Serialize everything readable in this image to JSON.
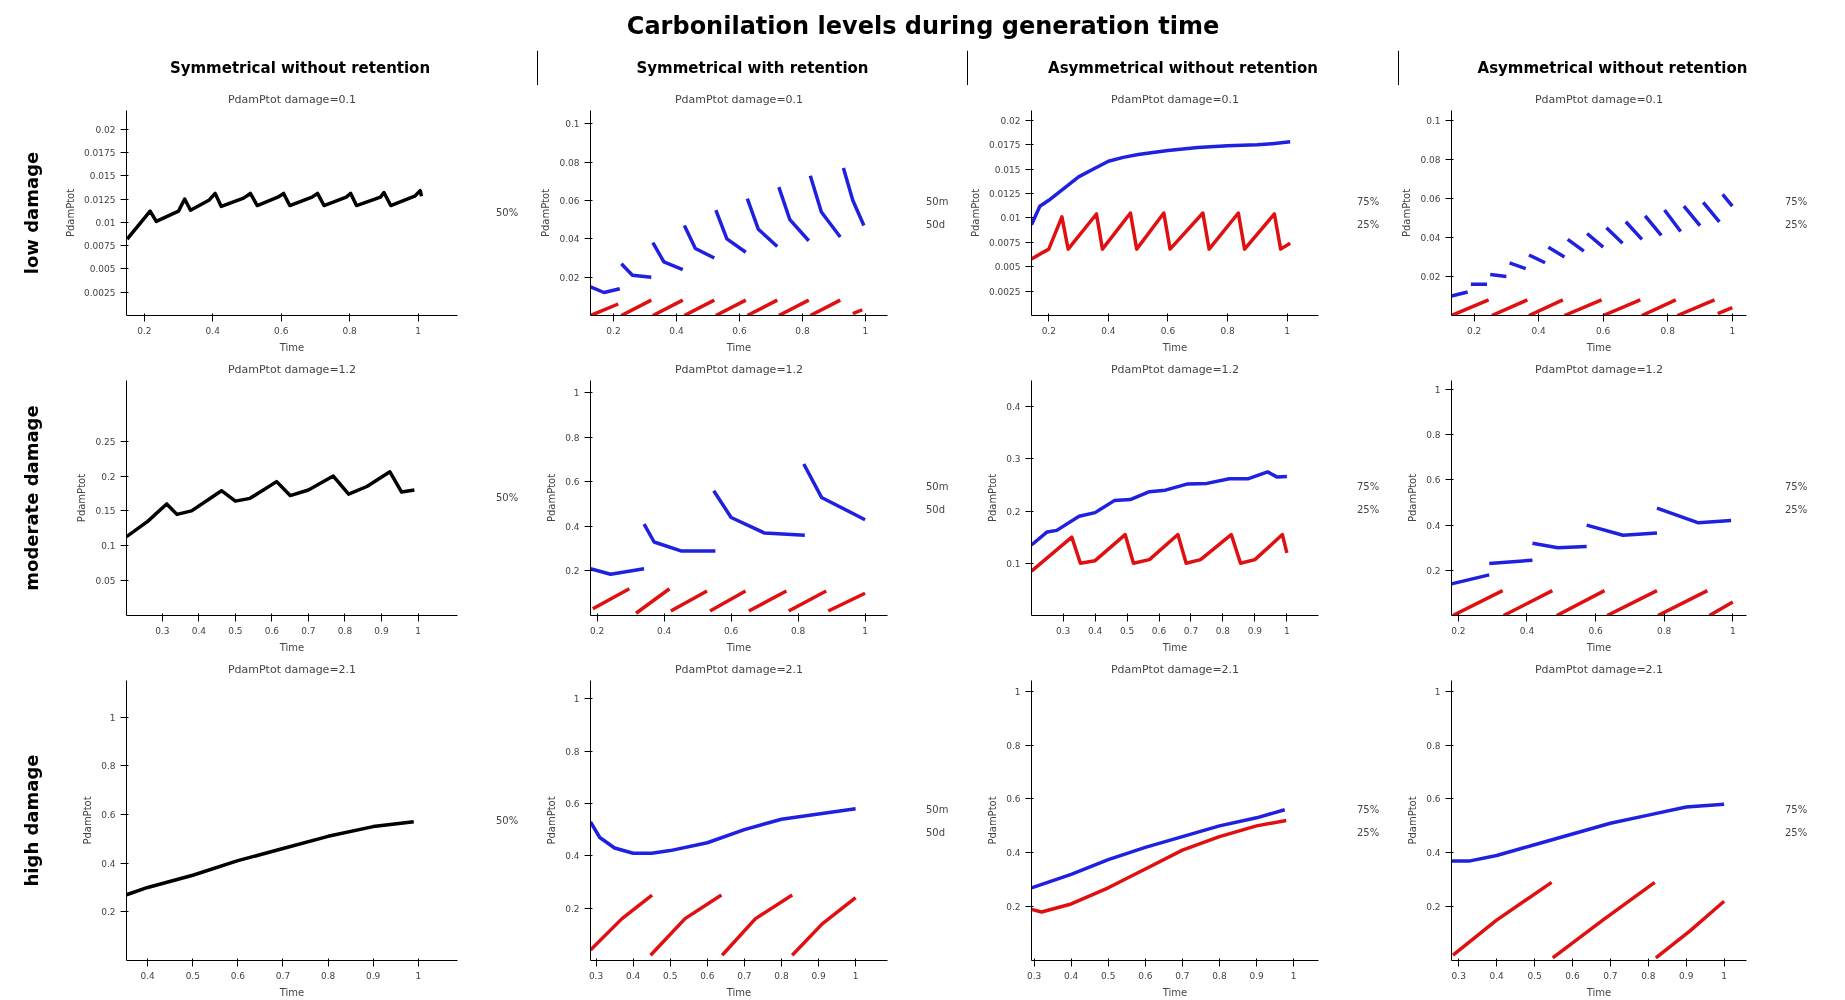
{
  "chart_data": [
    {
      "type": "other",
      "title": "Carbonilation levels during generation time",
      "categories": [
        "Symmetrical without retention",
        "Symmetrical with retention",
        "Asymmetrical without retention",
        "Asymmetrical without retention"
      ],
      "y_categories": [
        "low damage",
        "moderate damage",
        "high damage"
      ]
    },
    {
      "type": "line",
      "title": "PdamPtot damage=0.1",
      "xlabel": "Time",
      "ylabel": "PdamPtot",
      "xlim": [
        0.148,
        1.115
      ],
      "xticks": [
        0.2,
        0.4,
        0.6,
        0.8,
        1
      ],
      "ylim": [
        0,
        0.022
      ],
      "yticks": [
        0.0025,
        0.005,
        0.0075,
        0.01,
        0.0125,
        0.015,
        0.0175,
        0.02
      ],
      "legend": "right",
      "series": [
        {
          "name": "50%",
          "color": "#000000",
          "x": [
            0.15,
            0.217,
            0.235,
            0.3,
            0.318,
            0.335,
            0.39,
            0.407,
            0.425,
            0.49,
            0.51,
            0.53,
            0.59,
            0.607,
            0.625,
            0.69,
            0.706,
            0.725,
            0.79,
            0.803,
            0.82,
            0.89,
            0.9,
            0.92,
            0.99,
            1.006,
            1.01
          ],
          "values": [
            0.0082,
            0.0112,
            0.0101,
            0.0112,
            0.0125,
            0.0113,
            0.0124,
            0.0131,
            0.0117,
            0.0126,
            0.0131,
            0.0118,
            0.0127,
            0.0131,
            0.0118,
            0.0127,
            0.0131,
            0.0118,
            0.0127,
            0.0131,
            0.0118,
            0.0127,
            0.0132,
            0.0118,
            0.0128,
            0.0134,
            0.0128
          ]
        }
      ]
    },
    {
      "type": "line",
      "title": "PdamPtot damage=0.1",
      "xlabel": "Time",
      "ylabel": "PdamPtot",
      "xlim": [
        0.127,
        1.07
      ],
      "xticks": [
        0.2,
        0.4,
        0.6,
        0.8,
        1
      ],
      "ylim": [
        0,
        0.107
      ],
      "yticks": [
        0.02,
        0.04,
        0.06,
        0.08,
        0.1
      ],
      "legend": "right",
      "series": [
        {
          "name": "50m",
          "color": "#2020e0",
          "x": [
            0.127,
            0.17,
            0.22,
            null,
            0.225,
            0.26,
            0.32,
            null,
            0.325,
            0.36,
            0.42,
            null,
            0.425,
            0.46,
            0.52,
            null,
            0.525,
            0.56,
            0.62,
            null,
            0.625,
            0.66,
            0.72,
            null,
            0.725,
            0.76,
            0.82,
            null,
            0.825,
            0.86,
            0.92,
            null,
            0.93,
            0.96,
            0.995
          ],
          "values": [
            0.015,
            0.012,
            0.014,
            null,
            0.027,
            0.021,
            0.02,
            null,
            0.038,
            0.028,
            0.024,
            null,
            0.047,
            0.035,
            0.03,
            null,
            0.055,
            0.04,
            0.033,
            null,
            0.061,
            0.045,
            0.036,
            null,
            0.067,
            0.05,
            0.039,
            null,
            0.073,
            0.054,
            0.041,
            null,
            0.077,
            0.06,
            0.047
          ]
        },
        {
          "name": "50d",
          "color": "#e01010",
          "x": [
            0.127,
            0.215,
            null,
            0.225,
            0.32,
            null,
            0.325,
            0.42,
            null,
            0.425,
            0.52,
            null,
            0.525,
            0.62,
            null,
            0.625,
            0.72,
            null,
            0.725,
            0.82,
            null,
            0.825,
            0.92,
            null,
            0.96,
            0.99
          ],
          "values": [
            0,
            0.006,
            null,
            0,
            0.008,
            null,
            0,
            0.008,
            null,
            0,
            0.008,
            null,
            0,
            0.008,
            null,
            0,
            0.008,
            null,
            0,
            0.008,
            null,
            0,
            0.008,
            null,
            0.001,
            0.003
          ]
        }
      ]
    },
    {
      "type": "line",
      "title": "PdamPtot damage=0.1",
      "xlabel": "Time",
      "ylabel": "PdamPtot",
      "xlim": [
        0.142,
        1.105
      ],
      "xticks": [
        0.2,
        0.4,
        0.6,
        0.8,
        1
      ],
      "ylim": [
        0,
        0.021
      ],
      "yticks": [
        0.0025,
        0.005,
        0.0075,
        0.01,
        0.0125,
        0.015,
        0.0175,
        0.02
      ],
      "legend": "right",
      "series": [
        {
          "name": "75%",
          "color": "#2020e0",
          "x": [
            0.142,
            0.17,
            0.2,
            0.25,
            0.3,
            0.35,
            0.4,
            0.45,
            0.5,
            0.6,
            0.7,
            0.8,
            0.9,
            0.95,
            1.01
          ],
          "values": [
            0.0093,
            0.0112,
            0.0118,
            0.013,
            0.0142,
            0.015,
            0.0158,
            0.0162,
            0.0165,
            0.0169,
            0.0172,
            0.0174,
            0.0175,
            0.0176,
            0.0178
          ]
        },
        {
          "name": "25%",
          "color": "#e01010",
          "x": [
            0.142,
            0.2,
            0.244,
            0.265,
            0.36,
            0.38,
            0.474,
            0.495,
            0.586,
            0.607,
            0.717,
            0.738,
            0.836,
            0.857,
            0.957,
            0.978,
            1.01
          ],
          "values": [
            0.0058,
            0.0068,
            0.0101,
            0.0068,
            0.0104,
            0.0068,
            0.0105,
            0.0068,
            0.0105,
            0.0068,
            0.0105,
            0.0068,
            0.0105,
            0.0068,
            0.0104,
            0.0068,
            0.0074
          ]
        }
      ]
    },
    {
      "type": "line",
      "title": "PdamPtot damage=0.1",
      "xlabel": "Time",
      "ylabel": "PdamPtot",
      "xlim": [
        0.13,
        1.044
      ],
      "xticks": [
        0.2,
        0.4,
        0.6,
        0.8,
        1
      ],
      "ylim": [
        0,
        0.105
      ],
      "yticks": [
        0.02,
        0.04,
        0.06,
        0.08,
        0.1
      ],
      "legend": "right",
      "series": [
        {
          "name": "75%",
          "color": "#2020e0",
          "x": [
            0.13,
            0.18,
            null,
            0.19,
            0.24,
            null,
            0.25,
            0.3,
            null,
            0.31,
            0.36,
            null,
            0.37,
            0.42,
            null,
            0.43,
            0.48,
            null,
            0.49,
            0.54,
            null,
            0.55,
            0.6,
            null,
            0.61,
            0.66,
            null,
            0.67,
            0.72,
            null,
            0.73,
            0.78,
            null,
            0.79,
            0.84,
            null,
            0.85,
            0.9,
            null,
            0.91,
            0.96,
            null,
            0.97,
            1.0
          ],
          "values": [
            0.01,
            0.012,
            null,
            0.016,
            0.016,
            null,
            0.021,
            0.02,
            null,
            0.027,
            0.024,
            null,
            0.031,
            0.027,
            null,
            0.035,
            0.03,
            null,
            0.039,
            0.033,
            null,
            0.042,
            0.035,
            null,
            0.045,
            0.037,
            null,
            0.048,
            0.039,
            null,
            0.051,
            0.041,
            null,
            0.054,
            0.043,
            null,
            0.056,
            0.046,
            null,
            0.058,
            0.048,
            null,
            0.062,
            0.056
          ]
        },
        {
          "name": "25%",
          "color": "#e01010",
          "x": [
            0.13,
            0.245,
            null,
            0.255,
            0.365,
            null,
            0.37,
            0.475,
            null,
            0.48,
            0.595,
            null,
            0.6,
            0.715,
            null,
            0.72,
            0.825,
            null,
            0.83,
            0.945,
            null,
            0.955,
            1.0
          ],
          "values": [
            0,
            0.008,
            null,
            0,
            0.008,
            null,
            0,
            0.008,
            null,
            0,
            0.008,
            null,
            0,
            0.008,
            null,
            0,
            0.008,
            null,
            0,
            0.008,
            null,
            0.001,
            0.004
          ]
        }
      ]
    },
    {
      "type": "line",
      "title": "PdamPtot damage=1.2",
      "xlabel": "Time",
      "ylabel": "PdamPtot",
      "xlim": [
        0.202,
        1.108
      ],
      "xticks": [
        0.3,
        0.4,
        0.5,
        0.6,
        0.7,
        0.8,
        0.9,
        1
      ],
      "ylim": [
        0,
        0.337
      ],
      "yticks": [
        0.05,
        0.1,
        0.15,
        0.2,
        0.25
      ],
      "legend": "right",
      "series": [
        {
          "name": "50%",
          "color": "#000000",
          "x": [
            0.202,
            0.26,
            0.312,
            0.34,
            0.38,
            0.462,
            0.5,
            0.54,
            0.613,
            0.65,
            0.7,
            0.768,
            0.81,
            0.86,
            0.923,
            0.955,
            0.99
          ],
          "values": [
            0.113,
            0.135,
            0.16,
            0.145,
            0.15,
            0.179,
            0.164,
            0.168,
            0.192,
            0.172,
            0.18,
            0.2,
            0.174,
            0.185,
            0.206,
            0.177,
            0.18
          ]
        }
      ]
    },
    {
      "type": "line",
      "title": "PdamPtot damage=1.2",
      "xlabel": "Time",
      "ylabel": "PdamPtot",
      "xlim": [
        0.18,
        1.067
      ],
      "xticks": [
        0.2,
        0.4,
        0.6,
        0.8,
        1
      ],
      "ylim": [
        0,
        1.055
      ],
      "yticks": [
        0.2,
        0.4,
        0.6,
        0.8,
        1
      ],
      "legend": "right",
      "series": [
        {
          "name": "50m",
          "color": "#2020e0",
          "x": [
            0.18,
            0.24,
            0.34,
            null,
            0.34,
            0.37,
            0.45,
            0.553,
            null,
            0.548,
            0.6,
            0.7,
            0.82,
            null,
            0.817,
            0.87,
            1.0
          ],
          "values": [
            0.21,
            0.185,
            0.21,
            null,
            0.41,
            0.33,
            0.29,
            0.29,
            null,
            0.56,
            0.44,
            0.37,
            0.36,
            null,
            0.68,
            0.53,
            0.43
          ]
        },
        {
          "name": "50d",
          "color": "#e01010",
          "x": [
            0.187,
            0.296,
            null,
            0.316,
            0.416,
            null,
            0.42,
            0.528,
            null,
            0.537,
            0.643,
            null,
            0.653,
            0.765,
            null,
            0.772,
            0.884,
            null,
            0.89,
            1.0
          ],
          "values": [
            0.03,
            0.12,
            null,
            0.01,
            0.12,
            null,
            0.02,
            0.11,
            null,
            0.02,
            0.11,
            null,
            0.02,
            0.11,
            null,
            0.02,
            0.11,
            null,
            0.02,
            0.1
          ]
        }
      ]
    },
    {
      "type": "line",
      "title": "PdamPtot damage=1.2",
      "xlabel": "Time",
      "ylabel": "PdamPtot",
      "xlim": [
        0.201,
        1.099
      ],
      "xticks": [
        0.3,
        0.4,
        0.5,
        0.6,
        0.7,
        0.8,
        0.9,
        1
      ],
      "ylim": [
        0,
        0.45
      ],
      "yticks": [
        0.1,
        0.2,
        0.3,
        0.4
      ],
      "legend": "right",
      "series": [
        {
          "name": "75%",
          "color": "#2020e0",
          "x": [
            0.201,
            0.25,
            0.28,
            0.35,
            0.4,
            0.46,
            0.51,
            0.57,
            0.62,
            0.69,
            0.75,
            0.82,
            0.88,
            0.94,
            0.97,
            1.0
          ],
          "values": [
            0.135,
            0.16,
            0.163,
            0.19,
            0.197,
            0.22,
            0.222,
            0.237,
            0.24,
            0.252,
            0.253,
            0.262,
            0.262,
            0.275,
            0.265,
            0.266
          ]
        },
        {
          "name": "25%",
          "color": "#e01010",
          "x": [
            0.201,
            0.327,
            0.354,
            0.4,
            0.494,
            0.52,
            0.57,
            0.659,
            0.685,
            0.73,
            0.826,
            0.855,
            0.9,
            0.986,
            1.0
          ],
          "values": [
            0.085,
            0.15,
            0.1,
            0.105,
            0.155,
            0.1,
            0.107,
            0.155,
            0.1,
            0.107,
            0.155,
            0.1,
            0.107,
            0.155,
            0.12
          ]
        }
      ]
    },
    {
      "type": "line",
      "title": "PdamPtot damage=1.2",
      "xlabel": "Time",
      "ylabel": "PdamPtot",
      "xlim": [
        0.18,
        1.04
      ],
      "xticks": [
        0.2,
        0.4,
        0.6,
        0.8,
        1
      ],
      "ylim": [
        0,
        1.04
      ],
      "yticks": [
        0.2,
        0.4,
        0.6,
        0.8,
        1
      ],
      "legend": "right",
      "series": [
        {
          "name": "75%",
          "color": "#2020e0",
          "x": [
            0.18,
            0.29,
            null,
            0.29,
            0.416,
            null,
            0.416,
            0.49,
            0.574,
            null,
            0.574,
            0.68,
            0.779,
            null,
            0.779,
            0.9,
            0.995
          ],
          "values": [
            0.14,
            0.18,
            null,
            0.23,
            0.245,
            null,
            0.32,
            0.3,
            0.305,
            null,
            0.4,
            0.355,
            0.365,
            null,
            0.475,
            0.41,
            0.42
          ]
        },
        {
          "name": "25%",
          "color": "#e01010",
          "x": [
            0.184,
            0.329,
            null,
            0.332,
            0.474,
            null,
            0.487,
            0.626,
            null,
            0.634,
            0.779,
            null,
            0.782,
            0.926,
            null,
            0.932,
            1.0
          ],
          "values": [
            0,
            0.11,
            null,
            0,
            0.11,
            null,
            0,
            0.11,
            null,
            0,
            0.11,
            null,
            0,
            0.11,
            null,
            0,
            0.06
          ]
        }
      ]
    },
    {
      "type": "line",
      "title": "PdamPtot damage=2.1",
      "xlabel": "Time",
      "ylabel": "PdamPtot",
      "xlim": [
        0.353,
        1.087
      ],
      "xticks": [
        0.4,
        0.5,
        0.6,
        0.7,
        0.8,
        0.9,
        1
      ],
      "ylim": [
        0,
        1.15
      ],
      "yticks": [
        0.2,
        0.4,
        0.6,
        0.8,
        1
      ],
      "legend": "right",
      "series": [
        {
          "name": "50%",
          "color": "#000000",
          "x": [
            0.353,
            0.4,
            0.5,
            0.6,
            0.7,
            0.8,
            0.9,
            0.99
          ],
          "values": [
            0.27,
            0.3,
            0.35,
            0.41,
            0.46,
            0.51,
            0.55,
            0.57
          ]
        }
      ]
    },
    {
      "type": "line",
      "title": "PdamPtot damage=2.1",
      "xlabel": "Time",
      "ylabel": "PdamPtot",
      "xlim": [
        0.285,
        1.086
      ],
      "xticks": [
        0.3,
        0.4,
        0.5,
        0.6,
        0.7,
        0.8,
        0.9,
        1
      ],
      "ylim": [
        0,
        1.07
      ],
      "yticks": [
        0.2,
        0.4,
        0.6,
        0.8,
        1
      ],
      "legend": "right",
      "series": [
        {
          "name": "50m",
          "color": "#2020e0",
          "x": [
            0.285,
            0.31,
            0.35,
            0.4,
            0.45,
            0.5,
            0.6,
            0.7,
            0.8,
            0.9,
            1.0
          ],
          "values": [
            0.53,
            0.47,
            0.43,
            0.41,
            0.41,
            0.42,
            0.45,
            0.5,
            0.54,
            0.56,
            0.58
          ]
        },
        {
          "name": "50d",
          "color": "#e01010",
          "x": [
            0.285,
            0.37,
            0.451,
            null,
            0.447,
            0.54,
            0.638,
            null,
            0.64,
            0.73,
            0.829,
            null,
            0.829,
            0.91,
            1.0
          ],
          "values": [
            0.04,
            0.16,
            0.25,
            null,
            0.02,
            0.16,
            0.25,
            null,
            0.02,
            0.16,
            0.25,
            null,
            0.02,
            0.14,
            0.24
          ]
        }
      ]
    },
    {
      "type": "line",
      "title": "PdamPtot damage=2.1",
      "xlabel": "Time",
      "ylabel": "PdamPtot",
      "xlim": [
        0.293,
        1.067
      ],
      "xticks": [
        0.3,
        0.4,
        0.5,
        0.6,
        0.7,
        0.8,
        0.9,
        1
      ],
      "ylim": [
        0,
        1.04
      ],
      "yticks": [
        0.2,
        0.4,
        0.6,
        0.8,
        1
      ],
      "legend": "right",
      "series": [
        {
          "name": "75%",
          "color": "#2020e0",
          "x": [
            0.293,
            0.4,
            0.5,
            0.6,
            0.7,
            0.8,
            0.9,
            0.976
          ],
          "values": [
            0.27,
            0.32,
            0.375,
            0.42,
            0.46,
            0.5,
            0.53,
            0.56
          ]
        },
        {
          "name": "25%",
          "color": "#e01010",
          "x": [
            0.293,
            0.32,
            0.4,
            0.5,
            0.6,
            0.7,
            0.8,
            0.9,
            0.98
          ],
          "values": [
            0.19,
            0.18,
            0.21,
            0.27,
            0.34,
            0.41,
            0.46,
            0.5,
            0.52
          ]
        }
      ]
    },
    {
      "type": "line",
      "title": "PdamPtot damage=2.1",
      "xlabel": "Time",
      "ylabel": "PdamPtot",
      "xlim": [
        0.281,
        1.059
      ],
      "xticks": [
        0.3,
        0.4,
        0.5,
        0.6,
        0.7,
        0.8,
        0.9,
        1
      ],
      "ylim": [
        0,
        1.04
      ],
      "yticks": [
        0.2,
        0.4,
        0.6,
        0.8,
        1
      ],
      "legend": "right",
      "series": [
        {
          "name": "75%",
          "color": "#2020e0",
          "x": [
            0.281,
            0.33,
            0.4,
            0.5,
            0.6,
            0.7,
            0.8,
            0.9,
            1.0
          ],
          "values": [
            0.37,
            0.37,
            0.39,
            0.43,
            0.47,
            0.51,
            0.54,
            0.57,
            0.58
          ]
        },
        {
          "name": "25%",
          "color": "#e01010",
          "x": [
            0.285,
            0.4,
            0.545,
            null,
            0.548,
            0.68,
            0.817,
            null,
            0.82,
            0.91,
            1.0
          ],
          "values": [
            0.02,
            0.15,
            0.29,
            null,
            0.01,
            0.15,
            0.29,
            null,
            0.01,
            0.11,
            0.22
          ]
        }
      ]
    }
  ]
}
